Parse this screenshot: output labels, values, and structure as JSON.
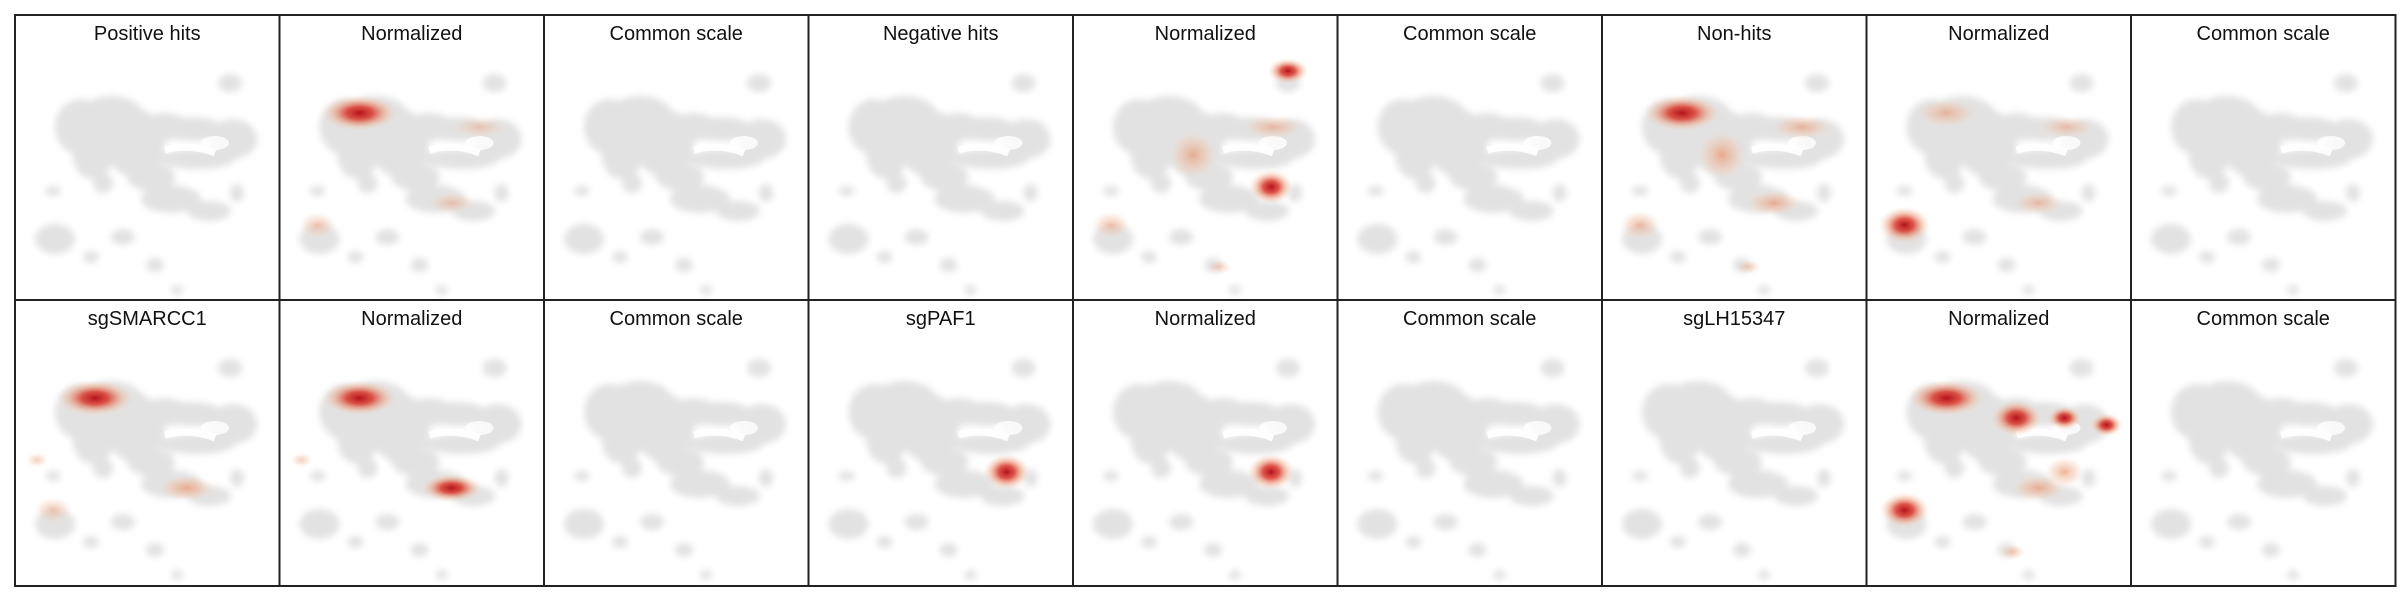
{
  "figure": {
    "rows": [
      {
        "panels": [
          {
            "title": "Positive hits",
            "mode": "raw",
            "hotspots": []
          },
          {
            "title": "Normalized",
            "mode": "normalized",
            "hotspots": [
              {
                "cluster": "left-upper",
                "intensity": 0.95
              },
              {
                "cluster": "lower-left-blob",
                "intensity": 0.3
              },
              {
                "cluster": "center-lower",
                "intensity": 0.25
              },
              {
                "cluster": "right-loop",
                "intensity": 0.2
              }
            ]
          },
          {
            "title": "Common scale",
            "mode": "common",
            "hotspots": []
          },
          {
            "title": "Negative hits",
            "mode": "raw",
            "hotspots": []
          },
          {
            "title": "Normalized",
            "mode": "normalized",
            "hotspots": [
              {
                "cluster": "top-right-island",
                "intensity": 0.95
              },
              {
                "cluster": "center",
                "intensity": 0.55
              },
              {
                "cluster": "right-loop",
                "intensity": 0.4
              },
              {
                "cluster": "right-lower",
                "intensity": 0.85
              },
              {
                "cluster": "lower-left-blob",
                "intensity": 0.35
              },
              {
                "cluster": "bottom-small",
                "intensity": 0.2
              }
            ]
          },
          {
            "title": "Common scale",
            "mode": "common",
            "hotspots": []
          },
          {
            "title": "Non-hits",
            "mode": "raw",
            "hotspots": [
              {
                "cluster": "left-upper",
                "intensity": 0.95
              },
              {
                "cluster": "center",
                "intensity": 0.6
              },
              {
                "cluster": "right-loop",
                "intensity": 0.45
              },
              {
                "cluster": "center-lower",
                "intensity": 0.55
              },
              {
                "cluster": "lower-left-blob",
                "intensity": 0.45
              },
              {
                "cluster": "bottom-small",
                "intensity": 0.25
              }
            ]
          },
          {
            "title": "Normalized",
            "mode": "normalized",
            "hotspots": [
              {
                "cluster": "left-upper",
                "intensity": 0.45
              },
              {
                "cluster": "lower-left-blob",
                "intensity": 1.0
              },
              {
                "cluster": "center-lower",
                "intensity": 0.35
              },
              {
                "cluster": "right-loop",
                "intensity": 0.3
              }
            ]
          },
          {
            "title": "Common scale",
            "mode": "common",
            "hotspots": []
          }
        ]
      },
      {
        "panels": [
          {
            "title": "sgSMARCC1",
            "mode": "raw",
            "hotspots": [
              {
                "cluster": "left-upper",
                "intensity": 0.95
              },
              {
                "cluster": "center-lower",
                "intensity": 0.6
              },
              {
                "cluster": "lower-left-blob",
                "intensity": 0.3
              },
              {
                "cluster": "far-left-small",
                "intensity": 0.25
              }
            ]
          },
          {
            "title": "Normalized",
            "mode": "normalized",
            "hotspots": [
              {
                "cluster": "left-upper",
                "intensity": 0.9
              },
              {
                "cluster": "center-lower",
                "intensity": 0.75
              },
              {
                "cluster": "far-left-small",
                "intensity": 0.25
              }
            ]
          },
          {
            "title": "Common scale",
            "mode": "common",
            "hotspots": []
          },
          {
            "title": "sgPAF1",
            "mode": "raw",
            "hotspots": [
              {
                "cluster": "right-lower",
                "intensity": 1.0
              }
            ]
          },
          {
            "title": "Normalized",
            "mode": "normalized",
            "hotspots": [
              {
                "cluster": "right-lower",
                "intensity": 1.0
              }
            ]
          },
          {
            "title": "Common scale",
            "mode": "common",
            "hotspots": []
          },
          {
            "title": "sgLH15347",
            "mode": "raw",
            "hotspots": []
          },
          {
            "title": "Normalized",
            "mode": "normalized",
            "hotspots": [
              {
                "cluster": "left-upper",
                "intensity": 0.95
              },
              {
                "cluster": "center-upper",
                "intensity": 0.95
              },
              {
                "cluster": "right-loop-a",
                "intensity": 0.8
              },
              {
                "cluster": "right-loop-b",
                "intensity": 0.7
              },
              {
                "cluster": "lower-left-blob",
                "intensity": 0.9
              },
              {
                "cluster": "center-lower",
                "intensity": 0.55
              },
              {
                "cluster": "right-lower",
                "intensity": 0.55
              },
              {
                "cluster": "bottom-small",
                "intensity": 0.3
              }
            ]
          },
          {
            "title": "Common scale",
            "mode": "common",
            "hotspots": []
          }
        ]
      }
    ],
    "colors": {
      "background_cells": "#e2e2e2",
      "low": "#f2c9b0",
      "high": "#c8161d",
      "frame": "#222222"
    }
  }
}
